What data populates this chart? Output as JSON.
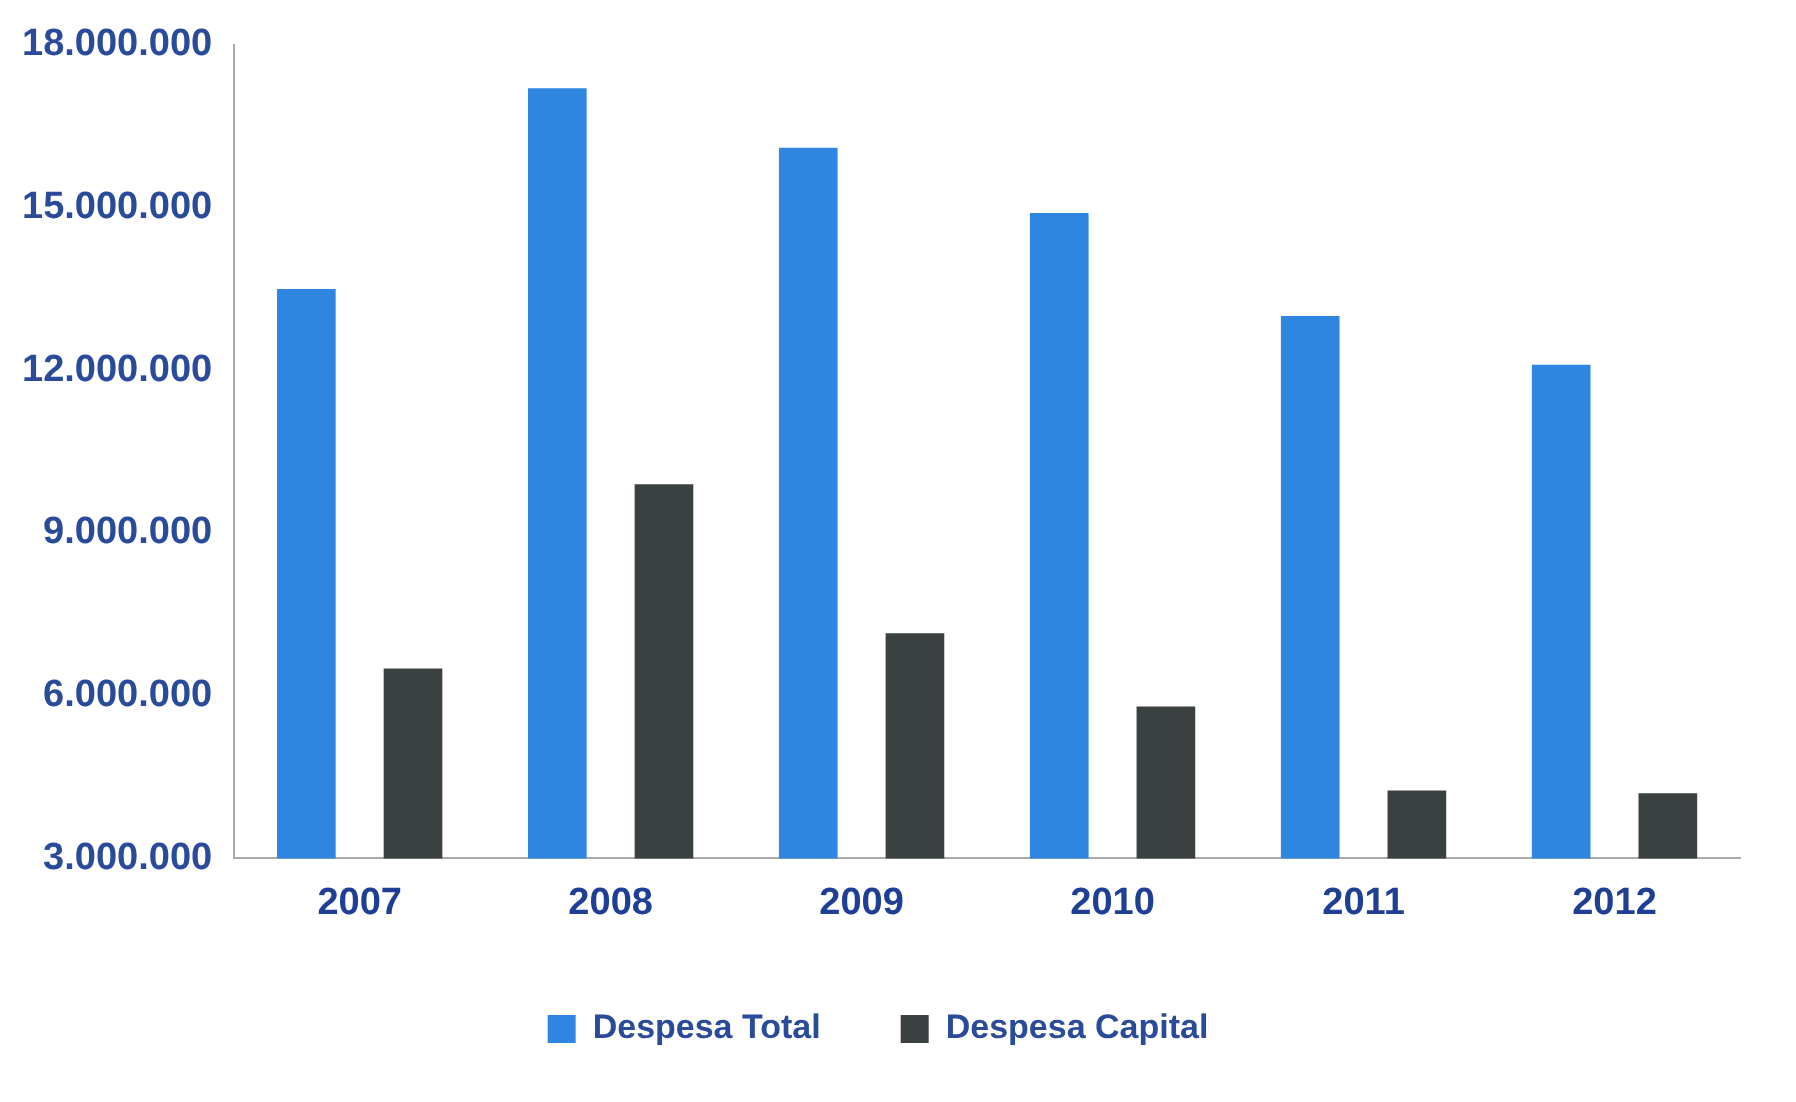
{
  "chart_data": {
    "type": "bar",
    "categories": [
      "2007",
      "2008",
      "2009",
      "2010",
      "2011",
      "2012"
    ],
    "series": [
      {
        "name": "Despesa Total",
        "color": "#2f86e0",
        "values": [
          13500000,
          17200000,
          16100000,
          14900000,
          13000000,
          12100000
        ]
      },
      {
        "name": "Despesa Capital",
        "color": "#3a4140",
        "values": [
          6500000,
          9900000,
          7150000,
          5800000,
          4250000,
          4200000
        ]
      }
    ],
    "ylim": [
      3000000,
      18000000
    ],
    "yticks": [
      {
        "value": 3000000,
        "label": "3.000.000"
      },
      {
        "value": 6000000,
        "label": "6.000.000"
      },
      {
        "value": 9000000,
        "label": "9.000.000"
      },
      {
        "value": 12000000,
        "label": "12.000.000"
      },
      {
        "value": 15000000,
        "label": "15.000.000"
      },
      {
        "value": 18000000,
        "label": "18.000.000"
      }
    ],
    "grid": false,
    "legend": "bottom"
  }
}
